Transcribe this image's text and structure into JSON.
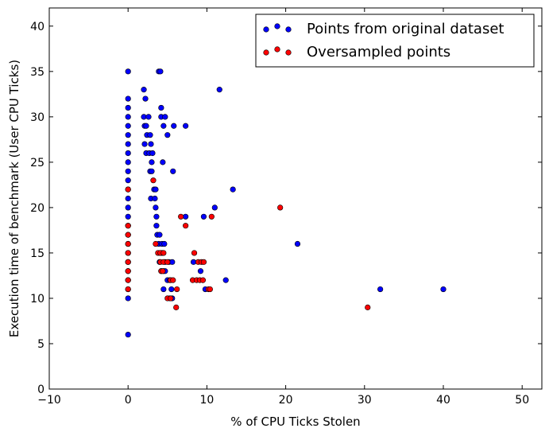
{
  "chart_data": {
    "type": "scatter",
    "title": "",
    "xlabel": "% of CPU Ticks Stolen",
    "ylabel": "Execution time of benchmark (User CPU Ticks)",
    "xlim": [
      -10,
      52.5
    ],
    "ylim": [
      0,
      42
    ],
    "xticks": [
      -10,
      0,
      10,
      20,
      30,
      40,
      50
    ],
    "yticks": [
      0,
      5,
      10,
      15,
      20,
      25,
      30,
      35,
      40
    ],
    "grid": false,
    "legend_position": "top-right",
    "series": [
      {
        "name": "Points from original dataset",
        "color": "#0000ff",
        "marker": "circle",
        "points": [
          [
            0,
            6
          ],
          [
            0,
            10
          ],
          [
            0,
            11
          ],
          [
            0,
            12
          ],
          [
            0,
            13
          ],
          [
            0,
            14
          ],
          [
            0,
            15
          ],
          [
            0,
            16
          ],
          [
            0,
            17
          ],
          [
            0,
            18
          ],
          [
            0,
            19
          ],
          [
            0,
            20
          ],
          [
            0,
            21
          ],
          [
            0,
            22
          ],
          [
            0,
            23
          ],
          [
            0,
            24
          ],
          [
            0,
            25
          ],
          [
            0,
            26
          ],
          [
            0,
            27
          ],
          [
            0,
            28
          ],
          [
            0,
            29
          ],
          [
            0,
            30
          ],
          [
            0,
            31
          ],
          [
            0,
            32
          ],
          [
            0,
            35
          ],
          [
            2.0,
            33
          ],
          [
            2.2,
            32
          ],
          [
            2.0,
            30
          ],
          [
            2.6,
            30
          ],
          [
            2.1,
            29
          ],
          [
            2.3,
            29
          ],
          [
            2.4,
            28
          ],
          [
            2.8,
            28
          ],
          [
            2.1,
            27
          ],
          [
            2.9,
            27
          ],
          [
            2.3,
            26
          ],
          [
            2.7,
            26
          ],
          [
            3.1,
            26
          ],
          [
            3.0,
            25
          ],
          [
            2.8,
            24
          ],
          [
            3.0,
            24
          ],
          [
            3.3,
            22
          ],
          [
            3.5,
            22
          ],
          [
            2.9,
            21
          ],
          [
            3.4,
            21
          ],
          [
            3.5,
            20
          ],
          [
            3.6,
            19
          ],
          [
            3.6,
            18
          ],
          [
            3.7,
            17
          ],
          [
            4.0,
            17
          ],
          [
            3.9,
            16
          ],
          [
            4.3,
            16
          ],
          [
            4.6,
            16
          ],
          [
            4.1,
            15
          ],
          [
            4.3,
            15
          ],
          [
            4.4,
            15
          ],
          [
            4.0,
            14
          ],
          [
            4.7,
            14
          ],
          [
            5.2,
            14
          ],
          [
            5.6,
            14
          ],
          [
            4.2,
            13
          ],
          [
            4.5,
            13
          ],
          [
            4.7,
            13
          ],
          [
            5.0,
            12
          ],
          [
            5.3,
            12
          ],
          [
            4.5,
            11
          ],
          [
            5.5,
            11
          ],
          [
            5.3,
            10
          ],
          [
            5.6,
            10
          ],
          [
            3.9,
            35
          ],
          [
            4.1,
            35
          ],
          [
            4.2,
            31
          ],
          [
            4.2,
            30
          ],
          [
            4.7,
            30
          ],
          [
            4.5,
            29
          ],
          [
            5.8,
            29
          ],
          [
            7.3,
            29
          ],
          [
            5.0,
            28
          ],
          [
            4.4,
            25
          ],
          [
            5.7,
            24
          ],
          [
            7.3,
            19
          ],
          [
            9.6,
            19
          ],
          [
            11.0,
            20
          ],
          [
            13.3,
            22
          ],
          [
            11.6,
            33
          ],
          [
            8.3,
            14
          ],
          [
            9.2,
            13
          ],
          [
            9.8,
            11
          ],
          [
            12.4,
            12
          ],
          [
            21.5,
            16
          ],
          [
            32.0,
            11
          ],
          [
            40.0,
            11
          ]
        ]
      },
      {
        "name": "Oversampled points",
        "color": "#ff0000",
        "marker": "circle",
        "points": [
          [
            0,
            11
          ],
          [
            0,
            12
          ],
          [
            0,
            13
          ],
          [
            0,
            14
          ],
          [
            0,
            15
          ],
          [
            0,
            16
          ],
          [
            0,
            17
          ],
          [
            0,
            18
          ],
          [
            0,
            22
          ],
          [
            3.2,
            23
          ],
          [
            3.5,
            16
          ],
          [
            3.8,
            15
          ],
          [
            4.1,
            15
          ],
          [
            4.5,
            15
          ],
          [
            4.1,
            14
          ],
          [
            4.5,
            14
          ],
          [
            5.0,
            14
          ],
          [
            4.2,
            13
          ],
          [
            4.4,
            13
          ],
          [
            5.4,
            12
          ],
          [
            5.7,
            12
          ],
          [
            5.0,
            10
          ],
          [
            5.4,
            10
          ],
          [
            6.2,
            11
          ],
          [
            6.1,
            9
          ],
          [
            6.7,
            19
          ],
          [
            7.3,
            18
          ],
          [
            8.4,
            15
          ],
          [
            8.9,
            14
          ],
          [
            9.3,
            14
          ],
          [
            9.6,
            14
          ],
          [
            8.2,
            12
          ],
          [
            8.7,
            12
          ],
          [
            9.1,
            12
          ],
          [
            9.5,
            12
          ],
          [
            10.2,
            11
          ],
          [
            10.4,
            11
          ],
          [
            10.6,
            19
          ],
          [
            19.3,
            20
          ],
          [
            30.4,
            9
          ]
        ]
      }
    ]
  }
}
